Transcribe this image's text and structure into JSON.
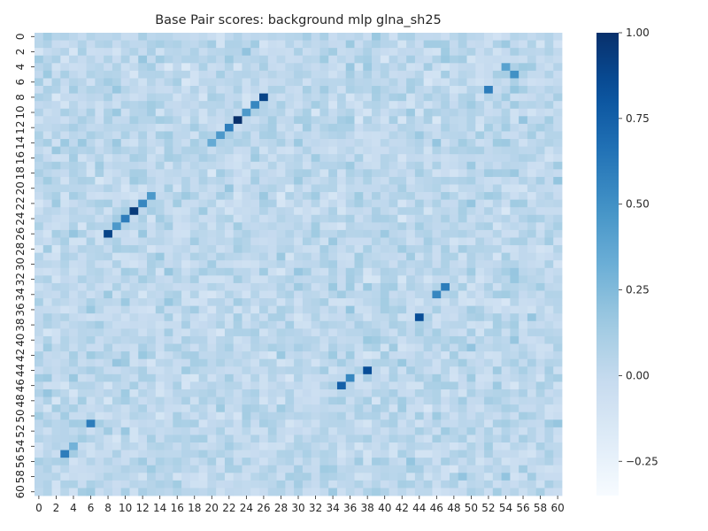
{
  "chart_data": {
    "type": "heatmap",
    "title": "Base Pair scores: background mlp glna_sh25",
    "xlabel": "",
    "ylabel": "",
    "n_rows": 61,
    "n_cols": 61,
    "x_tick_labels": [
      "0",
      "2",
      "4",
      "6",
      "8",
      "10",
      "12",
      "14",
      "16",
      "18",
      "20",
      "22",
      "24",
      "26",
      "28",
      "30",
      "32",
      "34",
      "36",
      "38",
      "40",
      "42",
      "44",
      "46",
      "48",
      "50",
      "52",
      "54",
      "56",
      "58",
      "60"
    ],
    "y_tick_labels": [
      "0",
      "2",
      "4",
      "6",
      "8",
      "10",
      "12",
      "14",
      "16",
      "18",
      "20",
      "22",
      "24",
      "26",
      "28",
      "30",
      "32",
      "34",
      "36",
      "38",
      "40",
      "42",
      "44",
      "46",
      "48",
      "50",
      "52",
      "54",
      "56",
      "58",
      "60"
    ],
    "colorbar": {
      "vmin": -0.35,
      "vmax": 1.0,
      "colormap": "Blues",
      "tick_values": [
        1.0,
        0.75,
        0.5,
        0.25,
        0.0,
        -0.25
      ],
      "tick_labels": [
        "1.00",
        "0.75",
        "0.50",
        "0.25",
        "0.00",
        "−0.25"
      ]
    },
    "background_range": [
      -0.25,
      0.3
    ],
    "highlighted_cells": [
      {
        "row": 8,
        "col": 26,
        "value": 0.9
      },
      {
        "row": 9,
        "col": 25,
        "value": 0.55
      },
      {
        "row": 10,
        "col": 24,
        "value": 0.45
      },
      {
        "row": 11,
        "col": 23,
        "value": 1.0
      },
      {
        "row": 12,
        "col": 22,
        "value": 0.6
      },
      {
        "row": 13,
        "col": 21,
        "value": 0.45
      },
      {
        "row": 14,
        "col": 20,
        "value": 0.35
      },
      {
        "row": 21,
        "col": 13,
        "value": 0.45
      },
      {
        "row": 22,
        "col": 12,
        "value": 0.55
      },
      {
        "row": 23,
        "col": 11,
        "value": 0.95
      },
      {
        "row": 24,
        "col": 10,
        "value": 0.6
      },
      {
        "row": 25,
        "col": 9,
        "value": 0.45
      },
      {
        "row": 26,
        "col": 8,
        "value": 0.9
      },
      {
        "row": 4,
        "col": 54,
        "value": 0.4
      },
      {
        "row": 5,
        "col": 55,
        "value": 0.5
      },
      {
        "row": 7,
        "col": 52,
        "value": 0.6
      },
      {
        "row": 33,
        "col": 47,
        "value": 0.6
      },
      {
        "row": 34,
        "col": 46,
        "value": 0.55
      },
      {
        "row": 37,
        "col": 44,
        "value": 0.85
      },
      {
        "row": 44,
        "col": 38,
        "value": 0.85
      },
      {
        "row": 45,
        "col": 36,
        "value": 0.55
      },
      {
        "row": 46,
        "col": 35,
        "value": 0.75
      },
      {
        "row": 51,
        "col": 6,
        "value": 0.6
      },
      {
        "row": 55,
        "col": 3,
        "value": 0.6
      },
      {
        "row": 54,
        "col": 4,
        "value": 0.3
      }
    ]
  }
}
